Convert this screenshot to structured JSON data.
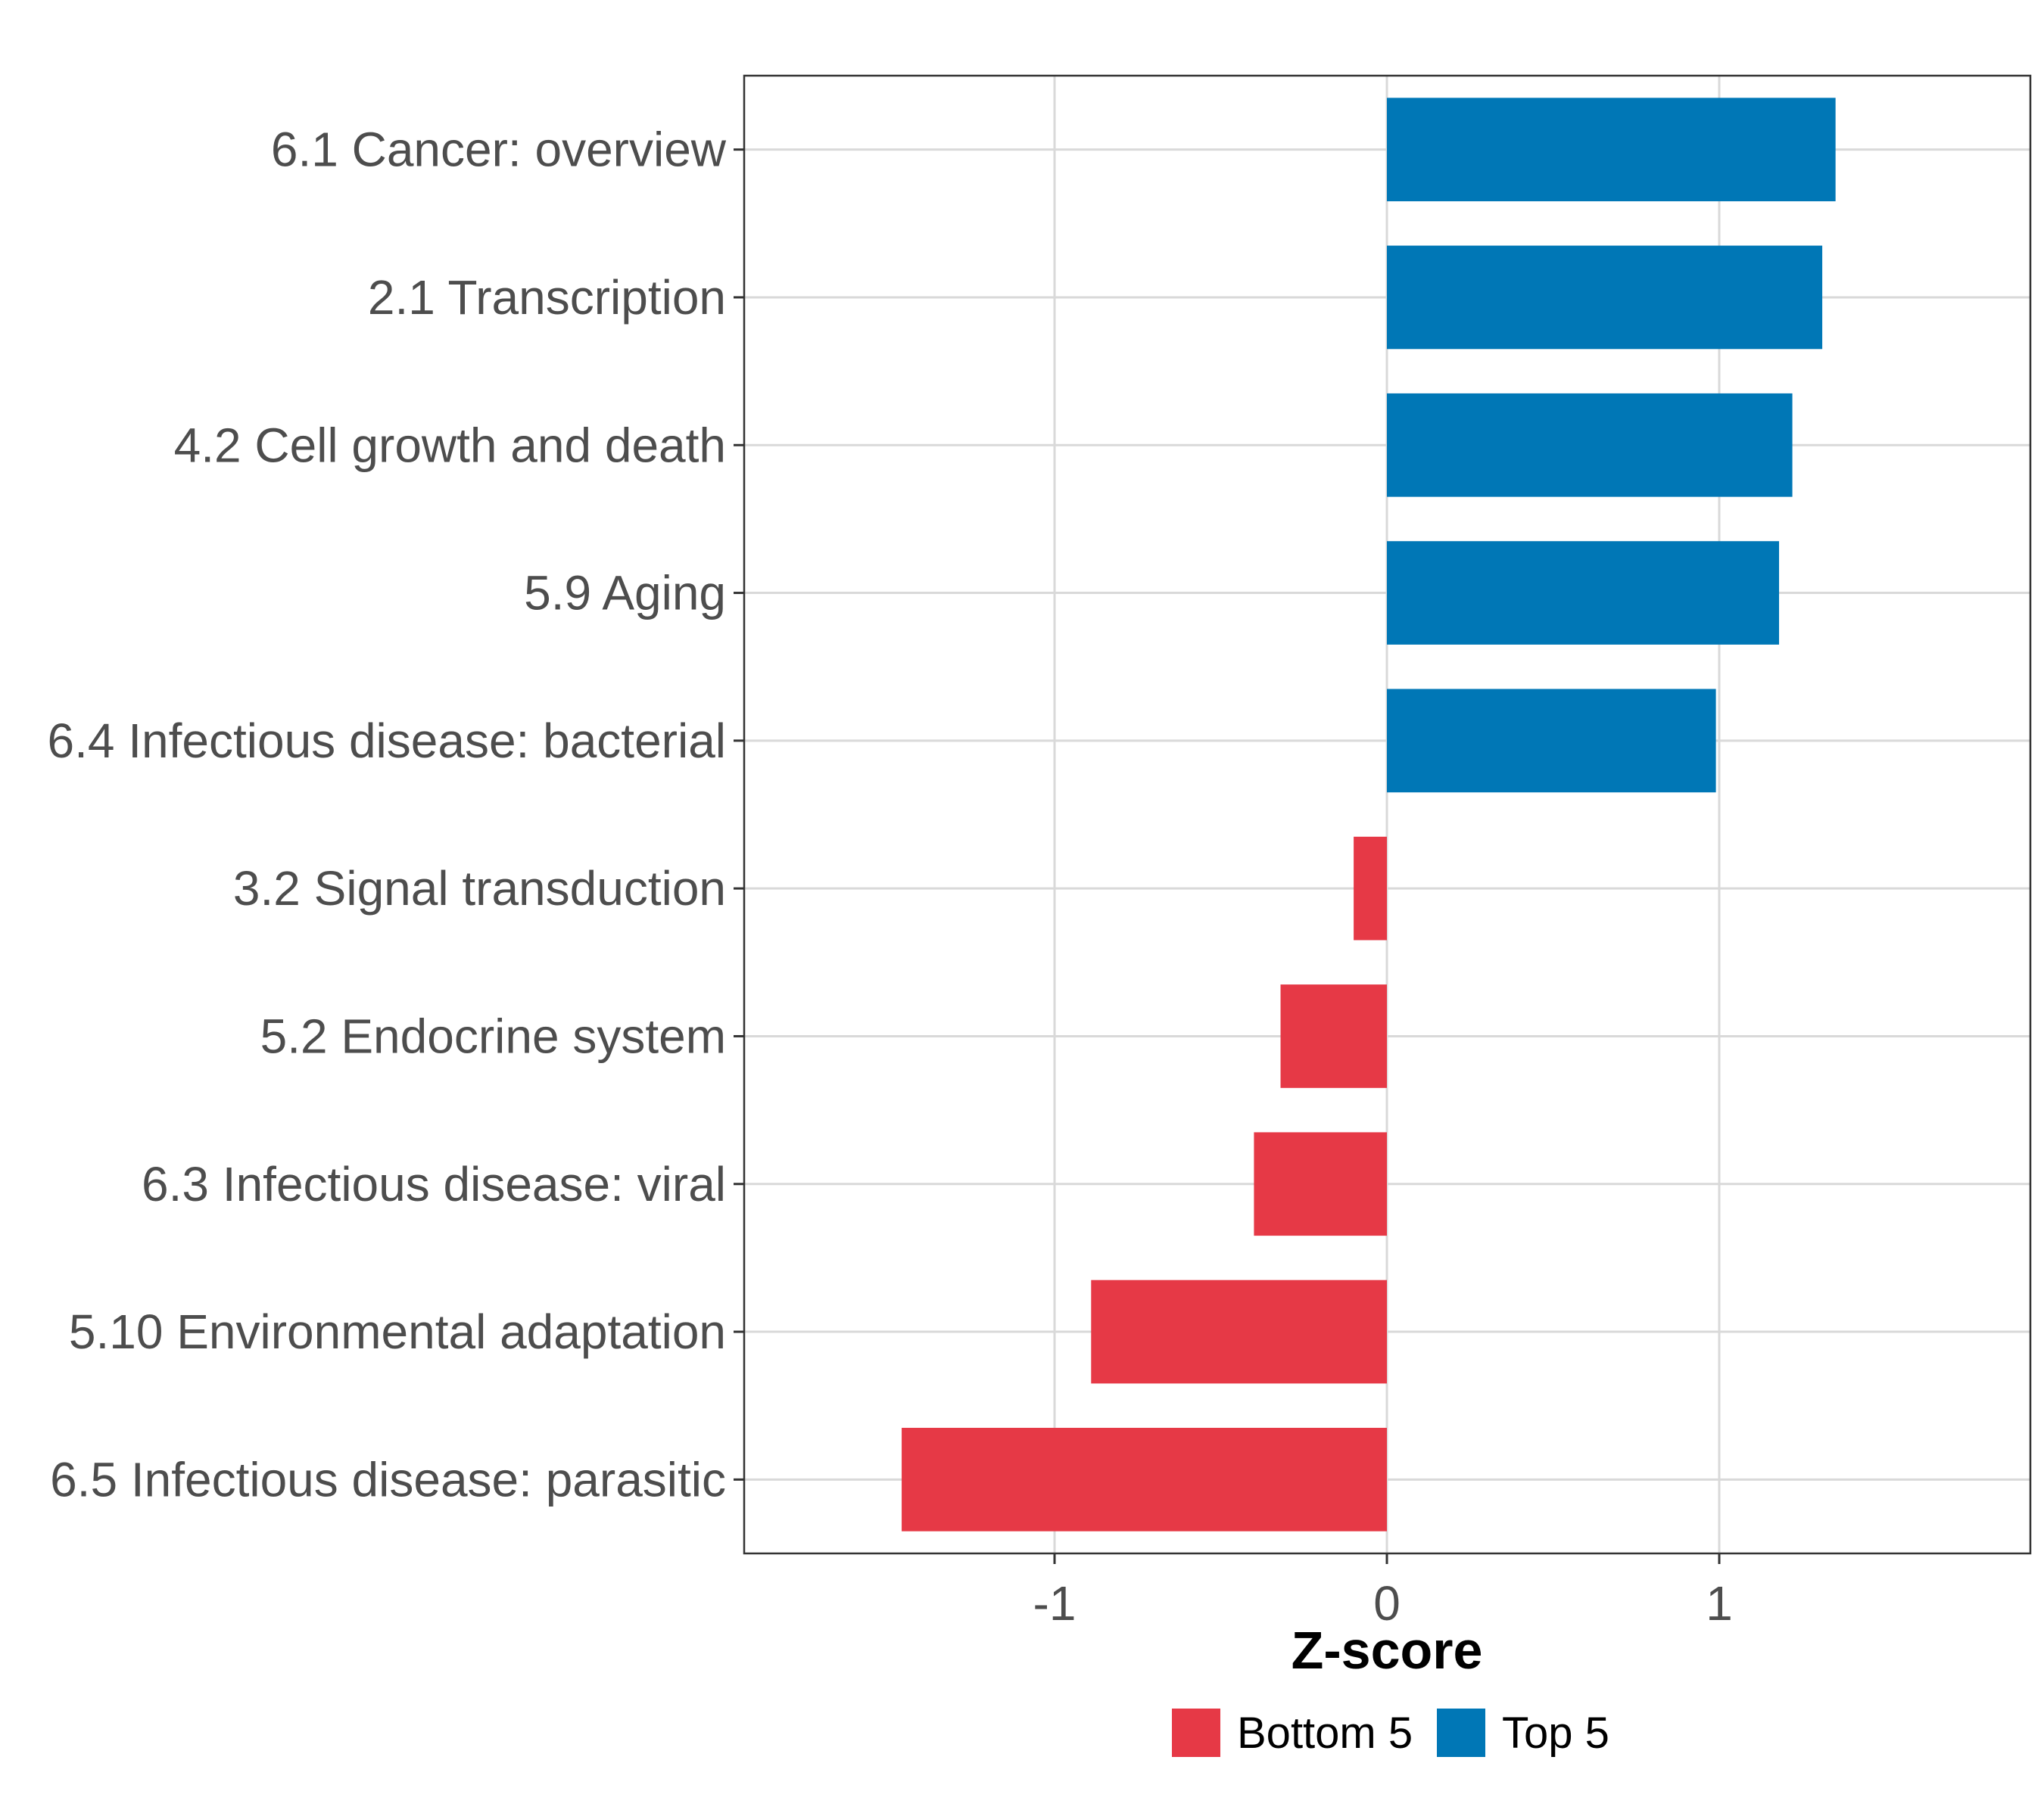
{
  "chart_data": {
    "type": "bar",
    "orientation": "horizontal",
    "title": "",
    "xlabel": "Z-score",
    "ylabel": "",
    "xlim": [
      -1.95,
      1.93
    ],
    "xticks": [
      -1,
      0,
      1
    ],
    "xtick_labels": [
      "-1",
      "0",
      "1"
    ],
    "grid": true,
    "legend_position": "bottom",
    "categories": [
      "6.1 Cancer: overview",
      "2.1 Transcription",
      "4.2 Cell growth and death",
      "5.9 Aging",
      "6.4 Infectious disease: bacterial",
      "3.2 Signal transduction",
      "5.2 Endocrine system",
      "6.3 Infectious disease: viral",
      "5.10 Environmental adaptation",
      "6.5 Infectious disease: parasitic"
    ],
    "values": [
      1.35,
      1.31,
      1.22,
      1.18,
      0.99,
      -0.1,
      -0.32,
      -0.4,
      -0.89,
      -1.46
    ],
    "groups": [
      "Top 5",
      "Top 5",
      "Top 5",
      "Top 5",
      "Top 5",
      "Bottom 5",
      "Bottom 5",
      "Bottom 5",
      "Bottom 5",
      "Bottom 5"
    ],
    "series": [
      {
        "name": "Bottom 5",
        "color": "#e63946"
      },
      {
        "name": "Top 5",
        "color": "#0077b6"
      }
    ]
  }
}
